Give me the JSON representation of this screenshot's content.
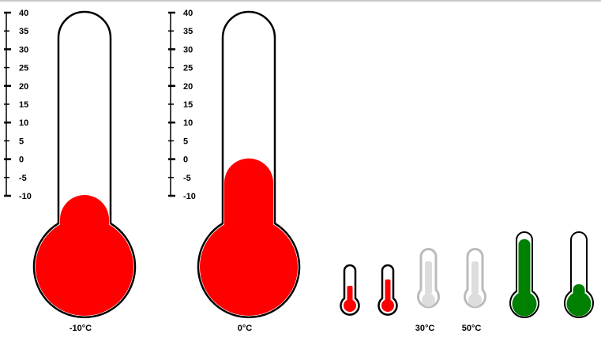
{
  "colors": {
    "mercury_red": "#ff0000",
    "mercury_green": "#008000",
    "outline_black": "#000000",
    "outline_gray": "#bbbbbb",
    "fill_gray": "#dddddd"
  },
  "scale": {
    "ticks": [
      "40",
      "35",
      "30",
      "25",
      "20",
      "15",
      "10",
      "5",
      "0",
      "-5",
      "-10"
    ]
  },
  "thermometers": [
    {
      "id": "large-thermometer-1",
      "caption": "-10°C",
      "value": -10,
      "color": "#ff0000"
    },
    {
      "id": "large-thermometer-2",
      "caption": "0°C",
      "value": 0,
      "color": "#ff0000"
    },
    {
      "id": "small-thermometer-1",
      "caption": "",
      "level": 0.35,
      "color": "#ff0000"
    },
    {
      "id": "small-thermometer-2",
      "caption": "",
      "level": 0.45,
      "color": "#ff0000"
    },
    {
      "id": "small-thermometer-3",
      "caption": "30°C",
      "level": 0.6,
      "color": "#dddddd"
    },
    {
      "id": "small-thermometer-4",
      "caption": "50°C",
      "level": 0.6,
      "color": "#dddddd"
    },
    {
      "id": "small-thermometer-5",
      "caption": "",
      "level": 0.88,
      "color": "#008000"
    },
    {
      "id": "small-thermometer-6",
      "caption": "",
      "level": 0.08,
      "color": "#008000"
    }
  ]
}
